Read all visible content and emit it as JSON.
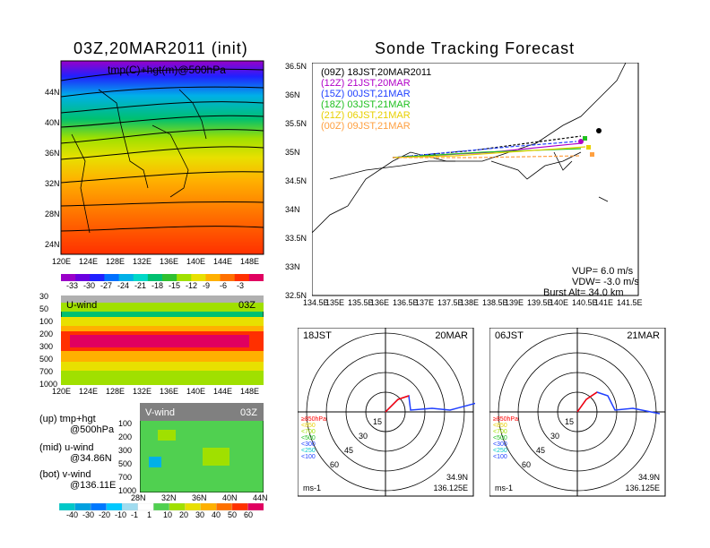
{
  "left_title": "03Z,20MAR2011 (init)",
  "right_title": "Sonde Tracking Forecast",
  "top_map": {
    "field_label": "tmp(C)+hgt(m)@500hPa",
    "x_ticks": [
      "120E",
      "124E",
      "128E",
      "132E",
      "136E",
      "140E",
      "144E",
      "148E"
    ],
    "y_ticks": [
      "24N",
      "28N",
      "32N",
      "36N",
      "40N",
      "44N"
    ],
    "height_contours": [
      "5300",
      "5350",
      "5400",
      "5450",
      "5500",
      "5550",
      "5600",
      "5650",
      "5700",
      "5750",
      "5800",
      "5850"
    ],
    "left_edge_labels": [
      "5250",
      "5300",
      "5400",
      "5450",
      "5500",
      "5550",
      "5700",
      "5750",
      "5800",
      "5850"
    ],
    "colorbar_labels": [
      "-33",
      "-30",
      "-27",
      "-24",
      "-21",
      "-18",
      "-15",
      "-12",
      "-9",
      "-6",
      "-3"
    ],
    "colorbar_colors": [
      "#9a00c8",
      "#6a00e0",
      "#2020ff",
      "#0070ff",
      "#00b0e8",
      "#00d8c8",
      "#00c070",
      "#30c030",
      "#a0e000",
      "#e8e000",
      "#ffb000",
      "#ff7000",
      "#ff3000",
      "#e00060"
    ]
  },
  "uwind": {
    "label": "U-wind",
    "time": "03Z",
    "y_ticks": [
      "30",
      "50",
      "100",
      "200",
      "300",
      "500",
      "700",
      "1000"
    ],
    "x_ticks": [
      "120E",
      "124E",
      "128E",
      "132E",
      "136E",
      "140E",
      "144E",
      "148E"
    ]
  },
  "vwind": {
    "label": "V-wind",
    "time": "03Z",
    "y_ticks": [
      "100",
      "200",
      "300",
      "500",
      "700",
      "1000"
    ],
    "x_ticks": [
      "28N",
      "32N",
      "36N",
      "40N",
      "44N"
    ],
    "colorbar_labels": [
      "-40",
      "-30",
      "-20",
      "-10",
      "-1",
      "1",
      "10",
      "20",
      "30",
      "40",
      "50",
      "60"
    ],
    "colorbar_colors": [
      "#00c8c8",
      "#00a0e0",
      "#0078ff",
      "#00c8ff",
      "#a0dcf0",
      "#ffffff",
      "#50d050",
      "#a0e000",
      "#e8e000",
      "#ffb000",
      "#ff7000",
      "#ff3000",
      "#e00060"
    ]
  },
  "notes": {
    "line1": "(up) tmp+hgt",
    "line2": "@500hPa",
    "line3": "(mid) u-wind",
    "line4": "@34.86N",
    "line5": "(bot) v-wind",
    "line6": "@136.11E"
  },
  "track_map": {
    "x_ticks": [
      "134.5E",
      "135E",
      "135.5E",
      "136E",
      "136.5E",
      "137E",
      "137.5E",
      "138E",
      "138.5E",
      "139E",
      "139.5E",
      "140E",
      "140.5E",
      "141E",
      "141.5E"
    ],
    "y_ticks": [
      "32.5N",
      "33N",
      "33.5N",
      "34N",
      "34.5N",
      "35N",
      "35.5N",
      "36N",
      "36.5N"
    ],
    "legend": [
      {
        "text": "(09Z)  18JST,20MAR2011",
        "color": "#000000"
      },
      {
        "text": "(12Z)  21JST,20MAR",
        "color": "#b000c8"
      },
      {
        "text": "(15Z)  00JST,21MAR",
        "color": "#2040ff"
      },
      {
        "text": "(18Z)  03JST,21MAR",
        "color": "#20c020"
      },
      {
        "text": "(21Z)  06JST,21MAR",
        "color": "#e8d000"
      },
      {
        "text": "(00Z)  09JST,21MAR",
        "color": "#ffa040"
      }
    ],
    "vup": "VUP=  6.0  m/s",
    "vdw": "VDW= -3.0  m/s",
    "burst": "Burst Alt=  34.0  km"
  },
  "hodographs": [
    {
      "time": "18JST",
      "date": "20MAR",
      "lat": "34.9N",
      "lon": "136.125E",
      "unit": "ms-1",
      "rings": [
        "15",
        "30",
        "45",
        "60"
      ]
    },
    {
      "time": "06JST",
      "date": "21MAR",
      "lat": "34.9N",
      "lon": "136.125E",
      "unit": "ms-1",
      "rings": [
        "15",
        "30",
        "45",
        "60"
      ]
    }
  ],
  "hodo_legend": [
    {
      "text": "≥850hPa",
      "color": "#ff0000"
    },
    {
      "text": "<850",
      "color": "#e8d000"
    },
    {
      "text": "<700",
      "color": "#a0e000"
    },
    {
      "text": "<500",
      "color": "#20c020"
    },
    {
      "text": "<300",
      "color": "#2040ff"
    },
    {
      "text": "<250",
      "color": "#00c8c8"
    },
    {
      "text": "<100",
      "color": "#2040ff"
    }
  ]
}
